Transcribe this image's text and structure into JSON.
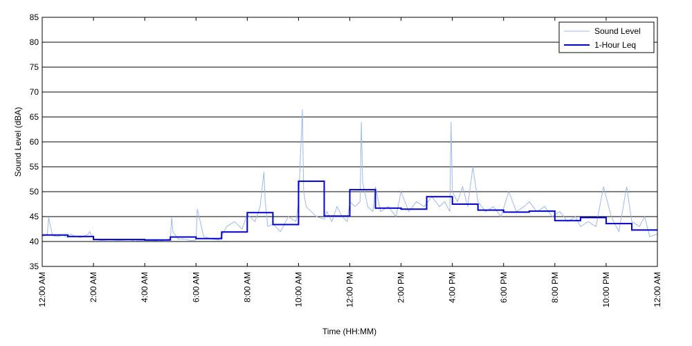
{
  "chart_data": {
    "type": "line",
    "title": "",
    "xlabel": "Time (HH:MM)",
    "ylabel": "Sound Level (dBA)",
    "xlim": [
      0,
      24
    ],
    "ylim": [
      35,
      85
    ],
    "yticks": [
      35,
      40,
      45,
      50,
      55,
      60,
      65,
      70,
      75,
      80,
      85
    ],
    "ytick_labels": [
      "35",
      "40",
      "45",
      "50",
      "55",
      "60",
      "65",
      "70",
      "75",
      "80",
      "85"
    ],
    "xticks": [
      0,
      2,
      4,
      6,
      8,
      10,
      12,
      14,
      16,
      18,
      20,
      22,
      24
    ],
    "xtick_labels": [
      "12:00 AM",
      "2:00 AM",
      "4:00 AM",
      "6:00 AM",
      "8:00 AM",
      "10:00 AM",
      "12:00 PM",
      "2:00 PM",
      "4:00 PM",
      "6:00 PM",
      "8:00 PM",
      "10:00 PM",
      "12:00 AM"
    ],
    "grid": "horizontal",
    "legend": "top-right",
    "series": [
      {
        "name": "Sound Level",
        "color": "#9db8ec",
        "x": [
          0,
          0.2,
          0.25,
          0.4,
          0.6,
          0.8,
          1.0,
          1.1,
          1.3,
          1.5,
          1.8,
          1.85,
          2.0,
          2.3,
          2.6,
          3.0,
          3.4,
          3.6,
          3.9,
          4.2,
          4.6,
          5.0,
          5.05,
          5.1,
          5.3,
          5.5,
          5.8,
          6.0,
          6.05,
          6.3,
          6.6,
          6.9,
          7.2,
          7.5,
          7.8,
          8.0,
          8.3,
          8.5,
          8.65,
          8.7,
          8.8,
          9.0,
          9.3,
          9.6,
          9.9,
          10.0,
          10.15,
          10.2,
          10.3,
          10.5,
          10.7,
          11.0,
          11.1,
          11.3,
          11.5,
          11.7,
          11.9,
          12.0,
          12.2,
          12.4,
          12.45,
          12.5,
          12.7,
          12.9,
          13.0,
          13.2,
          13.5,
          13.8,
          14.0,
          14.3,
          14.6,
          14.9,
          15.2,
          15.5,
          15.7,
          15.9,
          15.95,
          16.0,
          16.2,
          16.4,
          16.6,
          16.8,
          17.0,
          17.3,
          17.6,
          17.9,
          18.2,
          18.5,
          18.8,
          19.0,
          19.3,
          19.6,
          19.9,
          20.2,
          20.5,
          20.8,
          21.0,
          21.3,
          21.6,
          21.9,
          22.2,
          22.5,
          22.8,
          23.0,
          23.3,
          23.5,
          23.7,
          24.0
        ],
        "y": [
          41,
          41.5,
          44.8,
          41.2,
          41,
          41.3,
          40.8,
          41.5,
          41,
          40.8,
          41.5,
          42,
          40.5,
          40.2,
          40.3,
          40.2,
          40.3,
          40.1,
          40.2,
          40.2,
          40.1,
          40.5,
          44.8,
          42,
          40.5,
          40.5,
          40.2,
          40.3,
          46.5,
          41,
          40.5,
          40.3,
          43,
          44,
          42.5,
          45.5,
          44,
          47,
          54,
          48,
          43,
          43.5,
          42,
          45,
          44,
          48,
          66.5,
          50,
          47,
          46,
          45,
          44.5,
          46,
          44,
          47,
          45,
          44,
          48,
          47,
          48,
          64,
          52,
          47,
          46,
          51,
          46,
          47,
          45,
          50,
          46,
          48,
          47,
          49,
          47,
          48,
          46,
          64,
          50,
          48,
          51,
          47,
          55,
          48,
          46,
          47,
          45,
          50,
          46,
          47,
          48,
          46,
          47,
          45,
          46,
          44,
          45,
          43,
          44,
          43,
          51,
          45,
          42,
          51,
          44,
          43,
          45,
          41,
          41.5
        ]
      },
      {
        "name": "1-Hour Leq",
        "color": "#0000cc",
        "step": true,
        "x": [
          0,
          1,
          2,
          3,
          4,
          5,
          6,
          7,
          8,
          9,
          10,
          11,
          12,
          13,
          14,
          15,
          16,
          17,
          18,
          19,
          20,
          21,
          22,
          23
        ],
        "y": [
          41.3,
          41.0,
          40.4,
          40.4,
          40.3,
          40.9,
          40.6,
          41.9,
          45.8,
          43.4,
          52.1,
          45.1,
          50.4,
          46.7,
          46.5,
          49.0,
          47.5,
          46.3,
          45.9,
          46.1,
          44.2,
          44.8,
          43.6,
          42.3
        ]
      }
    ]
  }
}
